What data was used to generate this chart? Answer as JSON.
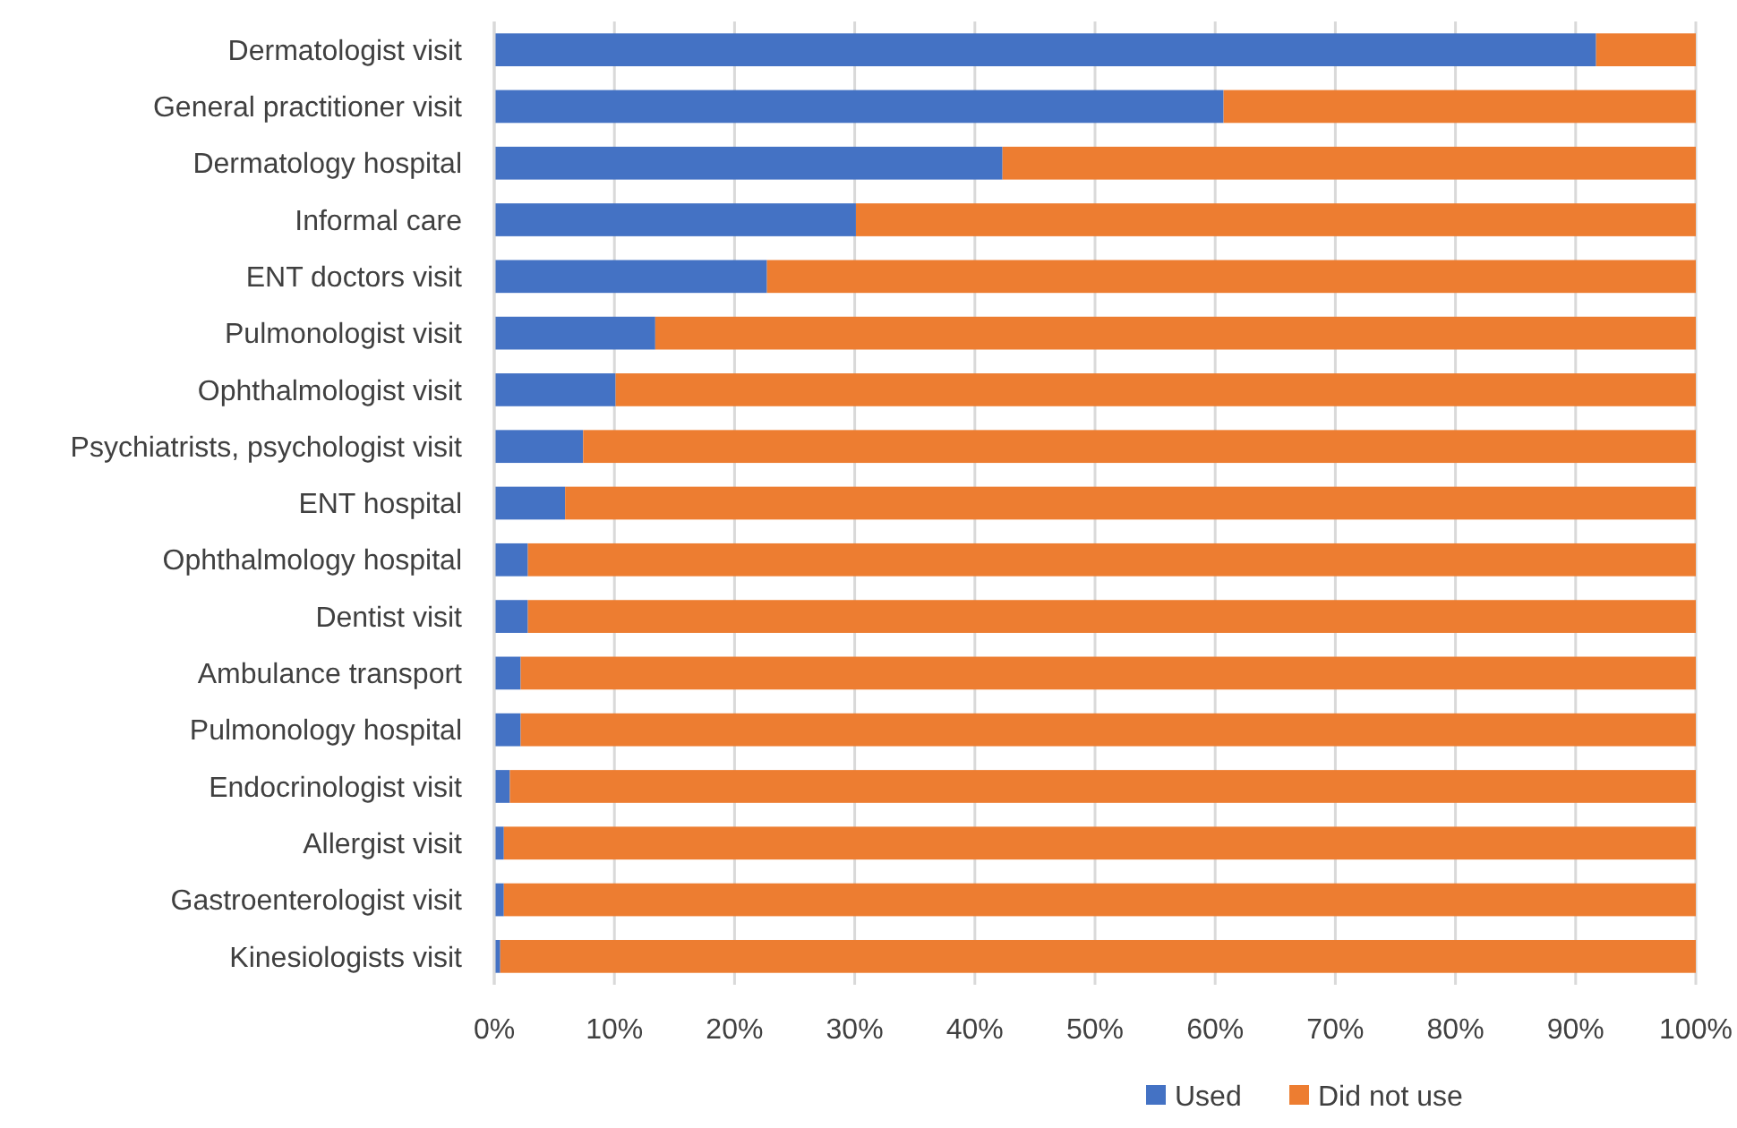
{
  "chart_data": {
    "type": "bar",
    "orientation": "horizontal",
    "stacked": true,
    "categories": [
      "Dermatologist visit",
      "General practitioner visit",
      "Dermatology hospital",
      "Informal care",
      "ENT doctors visit",
      "Pulmonologist visit",
      "Ophthalmologist visit",
      "Psychiatrists, psychologist visit",
      "ENT hospital",
      "Ophthalmology hospital",
      "Dentist visit",
      "Ambulance transport",
      "Pulmonology hospital",
      "Endocrinologist visit",
      "Allergist visit",
      "Gastroenterologist visit",
      "Kinesiologists visit"
    ],
    "series": [
      {
        "name": "Used",
        "color": "#4472c4",
        "values": [
          91.7,
          60.7,
          42.3,
          30.1,
          22.7,
          13.4,
          10.1,
          7.4,
          5.9,
          2.8,
          2.8,
          2.2,
          2.2,
          1.3,
          0.8,
          0.8,
          0.5
        ]
      },
      {
        "name": "Did not use",
        "color": "#ed7d31",
        "values": [
          8.3,
          39.3,
          57.7,
          69.9,
          77.3,
          86.6,
          89.9,
          92.6,
          94.1,
          97.2,
          97.2,
          97.8,
          97.8,
          98.7,
          99.2,
          99.2,
          99.5
        ]
      }
    ],
    "xlim": [
      0,
      100
    ],
    "xticks": [
      {
        "value": 0,
        "label": "0%"
      },
      {
        "value": 10,
        "label": "10%"
      },
      {
        "value": 20,
        "label": "20%"
      },
      {
        "value": 30,
        "label": "30%"
      },
      {
        "value": 40,
        "label": "40%"
      },
      {
        "value": 50,
        "label": "50%"
      },
      {
        "value": 60,
        "label": "60%"
      },
      {
        "value": 70,
        "label": "70%"
      },
      {
        "value": 80,
        "label": "80%"
      },
      {
        "value": 90,
        "label": "90%"
      },
      {
        "value": 100,
        "label": "100%"
      }
    ],
    "grid": "x",
    "legend": "bottom"
  }
}
